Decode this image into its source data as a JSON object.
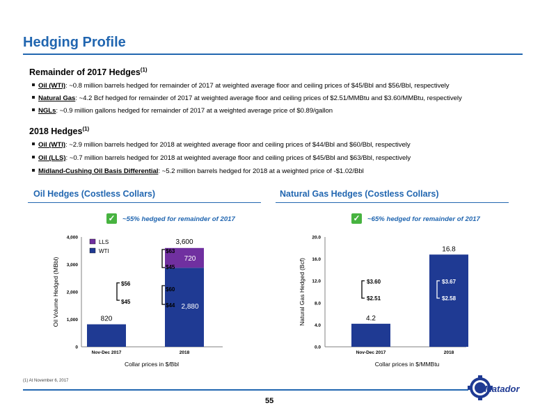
{
  "page": {
    "title": "Hedging Profile",
    "page_number": "55",
    "footnote": "(1)   At November 6, 2017",
    "logo_text": "Matador"
  },
  "section_2017": {
    "heading": "Remainder of 2017 Hedges",
    "footnote_marker": "(1)",
    "bullets": [
      {
        "term": "Oil (WTI)",
        "text": ": ~0.8 million barrels hedged for remainder of 2017 at weighted average floor and ceiling prices of $45/Bbl and $56/Bbl, respectively"
      },
      {
        "term": "Natural Gas",
        "text": ": ~4.2 Bcf hedged for remainder of 2017 at weighted average floor and ceiling prices of $2.51/MMBtu and $3.60/MMBtu, respectively"
      },
      {
        "term": "NGLs",
        "text": ": ~0.9 million gallons hedged for remainder of 2017 at a weighted average price of $0.89/gallon"
      }
    ]
  },
  "section_2018": {
    "heading": "2018 Hedges",
    "footnote_marker": "(1)",
    "bullets": [
      {
        "term": "Oil (WTI)",
        "text": ": ~2.9 million barrels hedged for 2018 at weighted average floor and ceiling prices of $44/Bbl and $60/Bbl, respectively"
      },
      {
        "term": "Oil (LLS)",
        "text": ": ~0.7 million barrels hedged for 2018 at weighted average floor and ceiling prices of $45/Bbl and $63/Bbl, respectively"
      },
      {
        "term": "Midland-Cushing Oil Basis Differential",
        "text": ": ~5.2 million barrels hedged for 2018 at a weighted price of -$1.02/Bbl"
      }
    ]
  },
  "oil_panel": {
    "heading": "Oil Hedges (Costless Collars)",
    "check": "✓",
    "hedged_note": "~55% hedged for remainder of 2017",
    "labels": {
      "total_2017": "820",
      "total_2018": "3,600",
      "wti_2018": "2,880",
      "lls_2018": "720",
      "ceil_2017": "$56",
      "floor_2017": "$45",
      "wti_ceil_2018": "$60",
      "wti_floor_2018": "$44",
      "lls_ceil_2018": "$63",
      "lls_floor_2018": "$45"
    },
    "ticks": [
      "0",
      "1,000",
      "2,000",
      "3,000",
      "4,000"
    ],
    "colors": {
      "wti": "#1f3a93",
      "lls": "#7030a0"
    }
  },
  "gas_panel": {
    "heading": "Natural Gas Hedges (Costless Collars)",
    "check": "✓",
    "hedged_note": "~65% hedged for remainder of 2017",
    "labels": {
      "total_2017": "4.2",
      "total_2018": "16.8",
      "ceil_2017": "$3.60",
      "floor_2017": "$2.51",
      "ceil_2018": "$3.67",
      "floor_2018": "$2.58"
    },
    "ticks": [
      "0.0",
      "4.0",
      "8.0",
      "12.0",
      "16.0",
      "20.0"
    ],
    "colors": {
      "bar": "#1f3a93"
    }
  },
  "chart_data": [
    {
      "type": "bar",
      "stacked": true,
      "title": "",
      "categories": [
        "Nov-Dec 2017",
        "2018"
      ],
      "series": [
        {
          "name": "WTI",
          "values": [
            820,
            2880
          ]
        },
        {
          "name": "LLS",
          "values": [
            0,
            720
          ]
        }
      ],
      "xlabel": "Collar prices in $/Bbl",
      "ylabel": "Oil Volume Hedged (MBbl)",
      "ylim": [
        0,
        4000
      ],
      "legend": "top-left"
    },
    {
      "type": "bar",
      "title": "",
      "categories": [
        "Nov-Dec 2017",
        "2018"
      ],
      "values": [
        4.2,
        16.8
      ],
      "xlabel": "Collar prices in $/MMBtu",
      "ylabel": "Natural Gas Hedged (Bcf)",
      "ylim": [
        0,
        20
      ]
    }
  ]
}
